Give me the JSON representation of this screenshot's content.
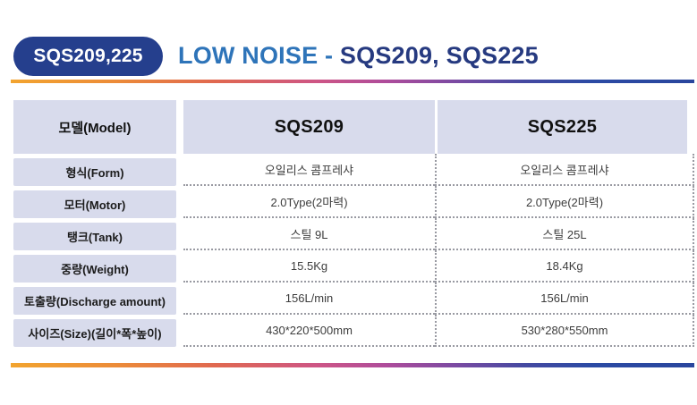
{
  "badge": {
    "label": "SQS209,225"
  },
  "title": {
    "part1": "LOW NOISE - ",
    "part2": "SQS209, SQS225"
  },
  "colors": {
    "badge_bg": "#253F8D",
    "title_blue": "#2E74B9",
    "title_navy": "#263A80",
    "header_cell_bg": "#D8DBEC",
    "dotted_border": "#999aa2",
    "gradient_start": "#F2A42F",
    "gradient_mid": "#C04F93",
    "gradient_end": "#2A469D"
  },
  "table": {
    "corner_label": "모델(Model)",
    "column_headers": [
      "SQS209",
      "SQS225"
    ],
    "rows": [
      {
        "label": "형식(Form)",
        "values": [
          "오일리스 콤프레샤",
          "오일리스 콤프레샤"
        ]
      },
      {
        "label": "모터(Motor)",
        "values": [
          "2.0Type(2마력)",
          "2.0Type(2마력)"
        ]
      },
      {
        "label": "탱크(Tank)",
        "values": [
          "스틸 9L",
          "스틸 25L"
        ]
      },
      {
        "label": "중량(Weight)",
        "values": [
          "15.5Kg",
          "18.4Kg"
        ]
      },
      {
        "label": "토출량(Discharge amount)",
        "values": [
          "156L/min",
          "156L/min"
        ]
      },
      {
        "label": "사이즈(Size)(길이*폭*높이)",
        "values": [
          "430*220*500mm",
          "530*280*550mm"
        ]
      }
    ]
  }
}
